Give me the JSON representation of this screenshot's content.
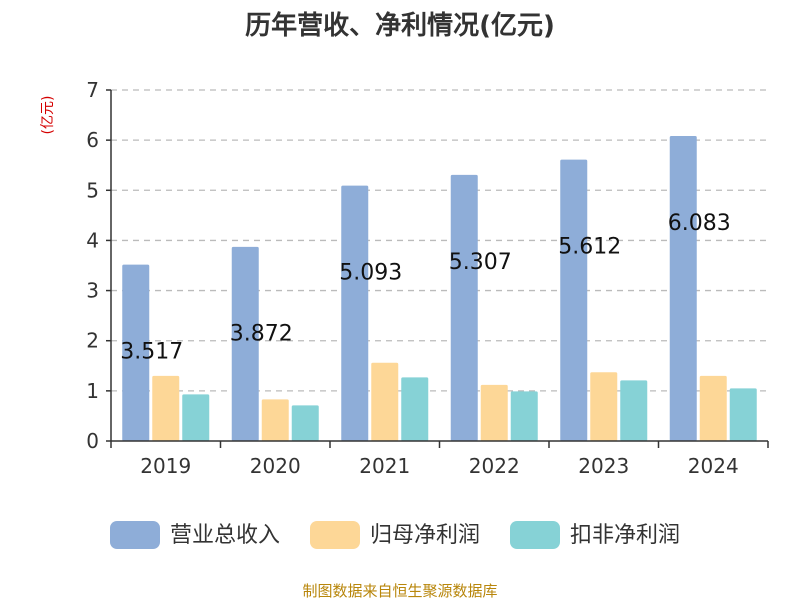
{
  "chart_data": {
    "type": "bar",
    "title": "历年营收、净利情况(亿元)",
    "ylabel": "(亿元)",
    "xlabel": "",
    "categories": [
      "2019",
      "2020",
      "2021",
      "2022",
      "2023",
      "2024"
    ],
    "ylim": [
      0,
      7
    ],
    "yticks": [
      0,
      1,
      2,
      3,
      4,
      5,
      6,
      7
    ],
    "grid": true,
    "legend_position": "bottom",
    "series": [
      {
        "name": "营业总收入",
        "color": "#8eadd8",
        "values": [
          3.517,
          3.872,
          5.093,
          5.307,
          5.612,
          6.083
        ],
        "show_labels": true
      },
      {
        "name": "归母净利润",
        "color": "#fdd797",
        "values": [
          1.3,
          0.83,
          1.56,
          1.12,
          1.37,
          1.3
        ],
        "show_labels": false
      },
      {
        "name": "扣非净利润",
        "color": "#86d2d6",
        "values": [
          0.93,
          0.71,
          1.27,
          0.99,
          1.21,
          1.05
        ],
        "show_labels": false
      }
    ],
    "source": "制图数据来自恒生聚源数据库"
  }
}
